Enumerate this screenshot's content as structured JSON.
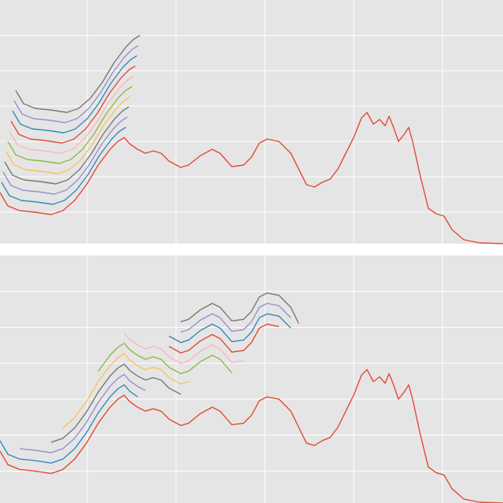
{
  "chart_data": [
    {
      "type": "line",
      "xlim": [
        0,
        640
      ],
      "ylim": [
        0,
        310
      ],
      "xticks": [
        111,
        224,
        337,
        450,
        563
      ],
      "yticks": [
        40,
        85,
        130,
        175,
        220,
        265
      ],
      "grid": true,
      "series": [
        {
          "color": "#E24A33",
          "x": [
            0,
            10,
            25,
            45,
            65,
            80,
            95,
            110,
            125,
            140,
            150,
            158,
            165,
            175,
            185,
            195,
            205,
            215,
            230,
            240,
            255,
            270,
            280,
            295,
            310,
            320,
            330,
            340,
            355,
            370,
            380,
            390,
            400,
            410,
            420,
            430,
            440,
            450,
            460,
            467,
            475,
            483,
            490,
            495,
            500,
            507,
            515,
            520,
            525,
            535,
            545,
            555,
            565,
            575,
            590,
            610,
            640
          ],
          "values": [
            65,
            48,
            42,
            40,
            37,
            42,
            55,
            75,
            100,
            120,
            130,
            135,
            127,
            120,
            115,
            118,
            115,
            105,
            97,
            100,
            112,
            120,
            115,
            98,
            100,
            110,
            128,
            133,
            130,
            115,
            95,
            75,
            72,
            78,
            82,
            95,
            115,
            135,
            160,
            167,
            152,
            158,
            150,
            162,
            150,
            130,
            140,
            148,
            130,
            85,
            45,
            38,
            35,
            18,
            5,
            1,
            0
          ]
        },
        {
          "color": "#348ABD",
          "x": [
            2,
            12,
            27,
            47,
            67,
            82,
            97,
            112,
            127,
            142,
            152,
            160
          ],
          "values": [
            78,
            61,
            55,
            53,
            50,
            55,
            68,
            88,
            113,
            133,
            143,
            148
          ]
        },
        {
          "color": "#988ED5",
          "x": [
            4,
            14,
            29,
            49,
            69,
            84,
            99,
            114,
            129,
            144,
            154,
            162
          ],
          "values": [
            91,
            74,
            68,
            66,
            63,
            68,
            81,
            101,
            126,
            146,
            156,
            161
          ]
        },
        {
          "color": "#777777",
          "x": [
            6,
            16,
            31,
            51,
            71,
            86,
            101,
            116,
            131,
            146,
            156,
            164
          ],
          "values": [
            104,
            87,
            81,
            79,
            76,
            81,
            94,
            114,
            139,
            159,
            169,
            174
          ]
        },
        {
          "color": "#FBC15E",
          "x": [
            8,
            18,
            33,
            53,
            73,
            88,
            103,
            118,
            133,
            148,
            158,
            166
          ],
          "values": [
            117,
            100,
            94,
            92,
            89,
            94,
            107,
            127,
            152,
            172,
            182,
            187
          ]
        },
        {
          "color": "#8EBA42",
          "x": [
            10,
            20,
            35,
            55,
            75,
            90,
            105,
            120,
            135,
            150,
            160,
            168
          ],
          "values": [
            130,
            113,
            107,
            105,
            102,
            107,
            120,
            140,
            165,
            185,
            195,
            200
          ]
        },
        {
          "color": "#FFB5B8",
          "x": [
            12,
            22,
            37,
            57,
            77,
            92,
            107,
            122,
            137,
            152,
            162,
            170
          ],
          "values": [
            143,
            126,
            120,
            118,
            115,
            120,
            133,
            153,
            178,
            198,
            208,
            213
          ]
        },
        {
          "color": "#E24A33",
          "x": [
            14,
            24,
            39,
            59,
            79,
            94,
            109,
            124,
            139,
            154,
            164,
            172
          ],
          "values": [
            156,
            139,
            133,
            131,
            128,
            133,
            146,
            166,
            191,
            211,
            221,
            226
          ]
        },
        {
          "color": "#348ABD",
          "x": [
            16,
            26,
            41,
            61,
            81,
            96,
            111,
            126,
            141,
            156,
            166,
            174
          ],
          "values": [
            169,
            152,
            146,
            144,
            141,
            146,
            159,
            179,
            204,
            224,
            234,
            239
          ]
        },
        {
          "color": "#988ED5",
          "x": [
            18,
            28,
            43,
            63,
            83,
            98,
            113,
            128,
            143,
            158,
            168,
            176
          ],
          "values": [
            182,
            165,
            159,
            157,
            154,
            159,
            172,
            192,
            217,
            237,
            247,
            252
          ]
        },
        {
          "color": "#777777",
          "x": [
            20,
            30,
            45,
            65,
            85,
            100,
            115,
            130,
            145,
            160,
            170,
            178
          ],
          "values": [
            195,
            178,
            172,
            170,
            167,
            172,
            185,
            205,
            230,
            250,
            260,
            265
          ]
        }
      ]
    },
    {
      "type": "line",
      "xlim": [
        0,
        640
      ],
      "ylim": [
        0,
        310
      ],
      "xticks": [
        111,
        224,
        337,
        450,
        563
      ],
      "yticks": [
        40,
        85,
        130,
        175,
        220,
        265
      ],
      "grid": true,
      "series": [
        {
          "color": "#E24A33",
          "x": [
            0,
            10,
            25,
            45,
            65,
            80,
            95,
            110,
            125,
            140,
            150,
            158,
            165,
            175,
            185,
            195,
            205,
            215,
            230,
            240,
            255,
            270,
            280,
            295,
            310,
            320,
            330,
            340,
            355,
            370,
            380,
            390,
            400,
            410,
            420,
            430,
            440,
            450,
            460,
            467,
            475,
            483,
            490,
            495,
            500,
            507,
            515,
            520,
            525,
            535,
            545,
            555,
            565,
            575,
            590,
            610,
            640
          ],
          "values": [
            65,
            48,
            42,
            40,
            37,
            42,
            55,
            75,
            100,
            120,
            130,
            135,
            127,
            120,
            115,
            118,
            115,
            105,
            97,
            100,
            112,
            120,
            115,
            98,
            100,
            110,
            128,
            133,
            130,
            115,
            95,
            75,
            72,
            78,
            82,
            95,
            115,
            135,
            160,
            167,
            152,
            158,
            150,
            162,
            150,
            130,
            140,
            148,
            130,
            85,
            45,
            38,
            35,
            18,
            5,
            1,
            0
          ]
        },
        {
          "color": "#348ABD",
          "x": [
            0,
            10,
            25,
            45,
            65,
            80,
            95,
            110,
            125,
            140,
            150,
            158,
            165,
            175
          ],
          "values": [
            78,
            61,
            55,
            53,
            50,
            55,
            68,
            88,
            113,
            133,
            143,
            148,
            140,
            133
          ]
        },
        {
          "color": "#988ED5",
          "x": [
            25,
            45,
            65,
            80,
            95,
            110,
            125,
            140,
            150,
            158,
            165,
            175,
            185
          ],
          "values": [
            68,
            66,
            63,
            68,
            81,
            101,
            126,
            146,
            156,
            161,
            153,
            146,
            141
          ]
        },
        {
          "color": "#777777",
          "x": [
            65,
            80,
            95,
            110,
            125,
            140,
            150,
            158,
            165,
            175,
            185,
            195,
            205,
            215,
            230
          ],
          "values": [
            76,
            81,
            94,
            114,
            139,
            159,
            169,
            174,
            166,
            159,
            154,
            157,
            154,
            144,
            136
          ]
        },
        {
          "color": "#FBC15E",
          "x": [
            80,
            95,
            110,
            125,
            140,
            150,
            158,
            165,
            175,
            185,
            195,
            205,
            215,
            230,
            240
          ],
          "values": [
            94,
            107,
            127,
            152,
            172,
            182,
            187,
            179,
            172,
            167,
            170,
            167,
            157,
            149,
            152
          ]
        },
        {
          "color": "#8EBA42",
          "x": [
            125,
            140,
            150,
            158,
            165,
            175,
            185,
            195,
            205,
            215,
            230,
            240,
            255,
            270,
            280,
            295
          ],
          "values": [
            165,
            185,
            195,
            200,
            192,
            185,
            180,
            183,
            180,
            170,
            162,
            165,
            177,
            185,
            180,
            163
          ]
        },
        {
          "color": "#FFB5B8",
          "x": [
            158,
            165,
            175,
            185,
            195,
            205,
            215,
            230,
            240,
            255,
            270,
            280,
            295,
            310
          ],
          "values": [
            213,
            205,
            198,
            193,
            196,
            193,
            183,
            175,
            178,
            190,
            198,
            193,
            176,
            178
          ]
        },
        {
          "color": "#E24A33",
          "x": [
            215,
            230,
            240,
            255,
            270,
            280,
            295,
            310,
            320,
            330,
            340,
            355
          ],
          "values": [
            196,
            188,
            191,
            203,
            211,
            206,
            189,
            191,
            201,
            219,
            224,
            221
          ]
        },
        {
          "color": "#348ABD",
          "x": [
            215,
            230,
            240,
            255,
            270,
            280,
            295,
            310,
            320,
            330,
            340,
            355,
            370
          ],
          "values": [
            209,
            201,
            204,
            216,
            224,
            219,
            202,
            204,
            214,
            232,
            237,
            234,
            219
          ]
        },
        {
          "color": "#988ED5",
          "x": [
            230,
            240,
            255,
            270,
            280,
            295,
            310,
            320,
            330,
            340,
            355,
            370
          ],
          "values": [
            214,
            217,
            229,
            237,
            232,
            215,
            217,
            227,
            245,
            250,
            247,
            232
          ]
        },
        {
          "color": "#777777",
          "x": [
            230,
            240,
            255,
            270,
            280,
            295,
            310,
            320,
            330,
            340,
            355,
            370,
            380
          ],
          "values": [
            227,
            230,
            242,
            250,
            245,
            228,
            230,
            240,
            258,
            263,
            260,
            245,
            225
          ]
        }
      ]
    }
  ]
}
